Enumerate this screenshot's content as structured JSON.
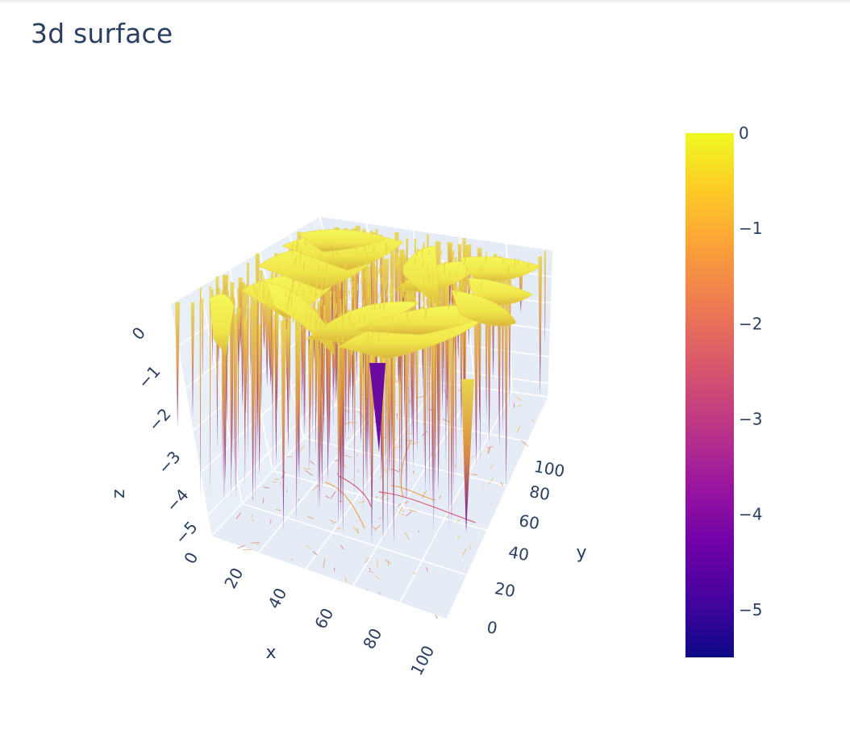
{
  "chart_data": {
    "type": "surface",
    "title": "3d surface",
    "x": {
      "label": "x",
      "range": [
        0,
        100
      ],
      "ticks": [
        "0",
        "20",
        "40",
        "60",
        "80",
        "100"
      ]
    },
    "y": {
      "label": "y",
      "range": [
        0,
        100
      ],
      "ticks": [
        "0",
        "20",
        "40",
        "60",
        "80",
        "100"
      ]
    },
    "z": {
      "label": "z",
      "range": [
        -5.5,
        0
      ],
      "ticks": [
        "0",
        "−1",
        "−2",
        "−3",
        "−4",
        "−5"
      ]
    },
    "colorbar": {
      "range": [
        -5.5,
        0
      ],
      "ticks": [
        "0",
        "−1",
        "−2",
        "−3",
        "−4",
        "−5"
      ],
      "colorscale": [
        "#0d0887",
        "#46039f",
        "#7201a8",
        "#9c179e",
        "#bd3786",
        "#d8576b",
        "#ed7953",
        "#fb9f3a",
        "#fdca26",
        "#f0f921"
      ]
    },
    "grid": true,
    "background": "#e5ecf6"
  }
}
